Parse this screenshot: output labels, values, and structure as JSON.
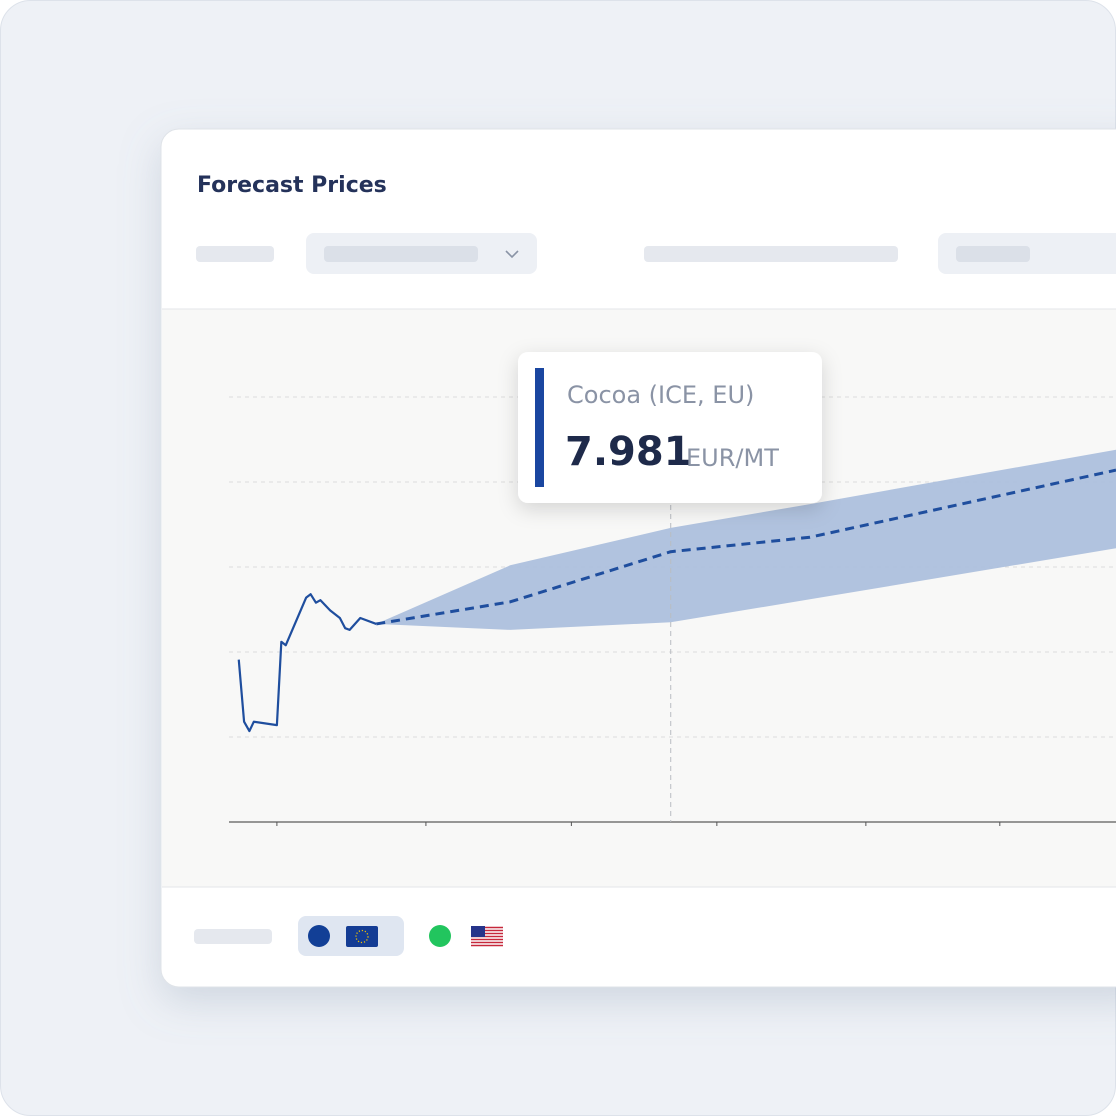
{
  "chart_data": {
    "type": "line",
    "title": "Forecast Prices",
    "xlim": [
      0,
      100
    ],
    "ylim": [
      0,
      6
    ],
    "xticks": [
      5.4,
      22.2,
      38.6,
      55.0,
      71.8,
      86.9
    ],
    "yticks": [
      1,
      2,
      3,
      4,
      5
    ],
    "grid": true,
    "cursor_x": 49.8,
    "series": [
      {
        "color": "#1f4e9e",
        "style": "solid",
        "x": [
          1.1,
          1.7,
          2.3,
          2.8,
          5.4,
          5.9,
          6.4,
          8.7,
          9.2,
          9.8,
          10.3,
          11.4,
          12.5,
          13.1,
          13.6,
          14.8,
          16.6
        ],
        "values": [
          1.91,
          1.18,
          1.07,
          1.18,
          1.14,
          2.12,
          2.08,
          2.64,
          2.68,
          2.58,
          2.61,
          2.49,
          2.4,
          2.28,
          2.26,
          2.4,
          2.33
        ]
      },
      {
        "color": "#1f4e9e",
        "style": "dashed",
        "x": [
          16.6,
          31.7,
          49.8,
          65.5,
          100
        ],
        "values": [
          2.33,
          2.59,
          3.18,
          3.35,
          4.14
        ]
      }
    ],
    "band": {
      "color": "#a9bddb",
      "x": [
        16.6,
        31.7,
        49.8,
        65.5,
        100
      ],
      "upper": [
        2.33,
        3.02,
        3.46,
        3.74,
        4.38
      ],
      "lower": [
        2.33,
        2.26,
        2.35,
        2.62,
        3.22
      ]
    },
    "tooltip": {
      "label": "Cocoa (ICE, EU)",
      "value": "7.981",
      "unit": "EUR/MT"
    }
  }
}
